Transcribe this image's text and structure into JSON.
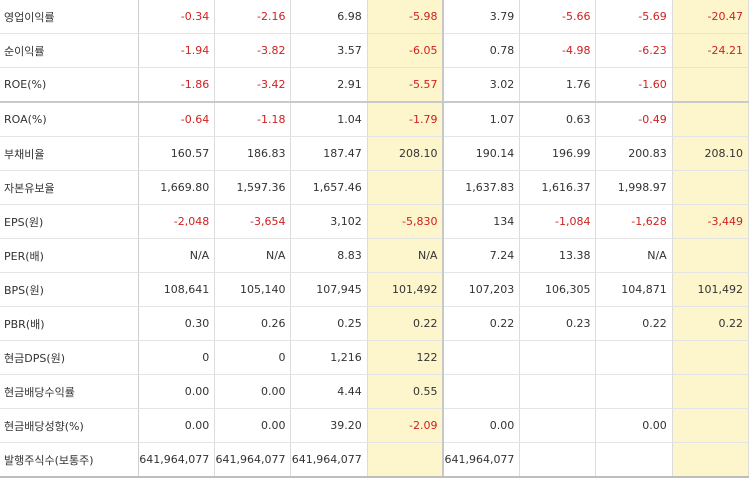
{
  "rows": [
    {
      "label": "영업이익률",
      "values": [
        "-0.34",
        "-2.16",
        "6.98",
        "-5.98",
        "3.79",
        "-5.66",
        "-5.69",
        "-20.47"
      ]
    },
    {
      "label": "순이익률",
      "values": [
        "-1.94",
        "-3.82",
        "3.57",
        "-6.05",
        "0.78",
        "-4.98",
        "-6.23",
        "-24.21"
      ]
    },
    {
      "label": "ROE(%)",
      "values": [
        "-1.86",
        "-3.42",
        "2.91",
        "-5.57",
        "3.02",
        "1.76",
        "-1.60",
        ""
      ]
    },
    {
      "label": "ROA(%)",
      "values": [
        "-0.64",
        "-1.18",
        "1.04",
        "-1.79",
        "1.07",
        "0.63",
        "-0.49",
        ""
      ]
    },
    {
      "label": "부채비율",
      "values": [
        "160.57",
        "186.83",
        "187.47",
        "208.10",
        "190.14",
        "196.99",
        "200.83",
        "208.10"
      ]
    },
    {
      "label": "자본유보율",
      "values": [
        "1,669.80",
        "1,597.36",
        "1,657.46",
        "",
        "1,637.83",
        "1,616.37",
        "1,998.97",
        ""
      ]
    },
    {
      "label": "EPS(원)",
      "values": [
        "-2,048",
        "-3,654",
        "3,102",
        "-5,830",
        "134",
        "-1,084",
        "-1,628",
        "-3,449"
      ]
    },
    {
      "label": "PER(배)",
      "values": [
        "N/A",
        "N/A",
        "8.83",
        "N/A",
        "7.24",
        "13.38",
        "N/A",
        ""
      ]
    },
    {
      "label": "BPS(원)",
      "values": [
        "108,641",
        "105,140",
        "107,945",
        "101,492",
        "107,203",
        "106,305",
        "104,871",
        "101,492"
      ]
    },
    {
      "label": "PBR(배)",
      "values": [
        "0.30",
        "0.26",
        "0.25",
        "0.22",
        "0.22",
        "0.23",
        "0.22",
        "0.22"
      ]
    },
    {
      "label": "현금DPS(원)",
      "values": [
        "0",
        "0",
        "1,216",
        "122",
        "",
        "",
        "",
        ""
      ]
    },
    {
      "label": "현금배당수익률",
      "values": [
        "0.00",
        "0.00",
        "4.44",
        "0.55",
        "",
        "",
        "",
        ""
      ]
    },
    {
      "label": "현금배당성향(%)",
      "values": [
        "0.00",
        "0.00",
        "39.20",
        "-2.09",
        "0.00",
        "",
        "0.00",
        ""
      ]
    },
    {
      "label": "발행주식수(보통주)",
      "values": [
        "641,964,077",
        "641,964,077",
        "641,964,077",
        "",
        "641,964,077",
        "",
        "",
        ""
      ]
    }
  ],
  "colors": {
    "negative": "#d02020",
    "highlight": "#fdf6cc",
    "text": "#333333"
  }
}
